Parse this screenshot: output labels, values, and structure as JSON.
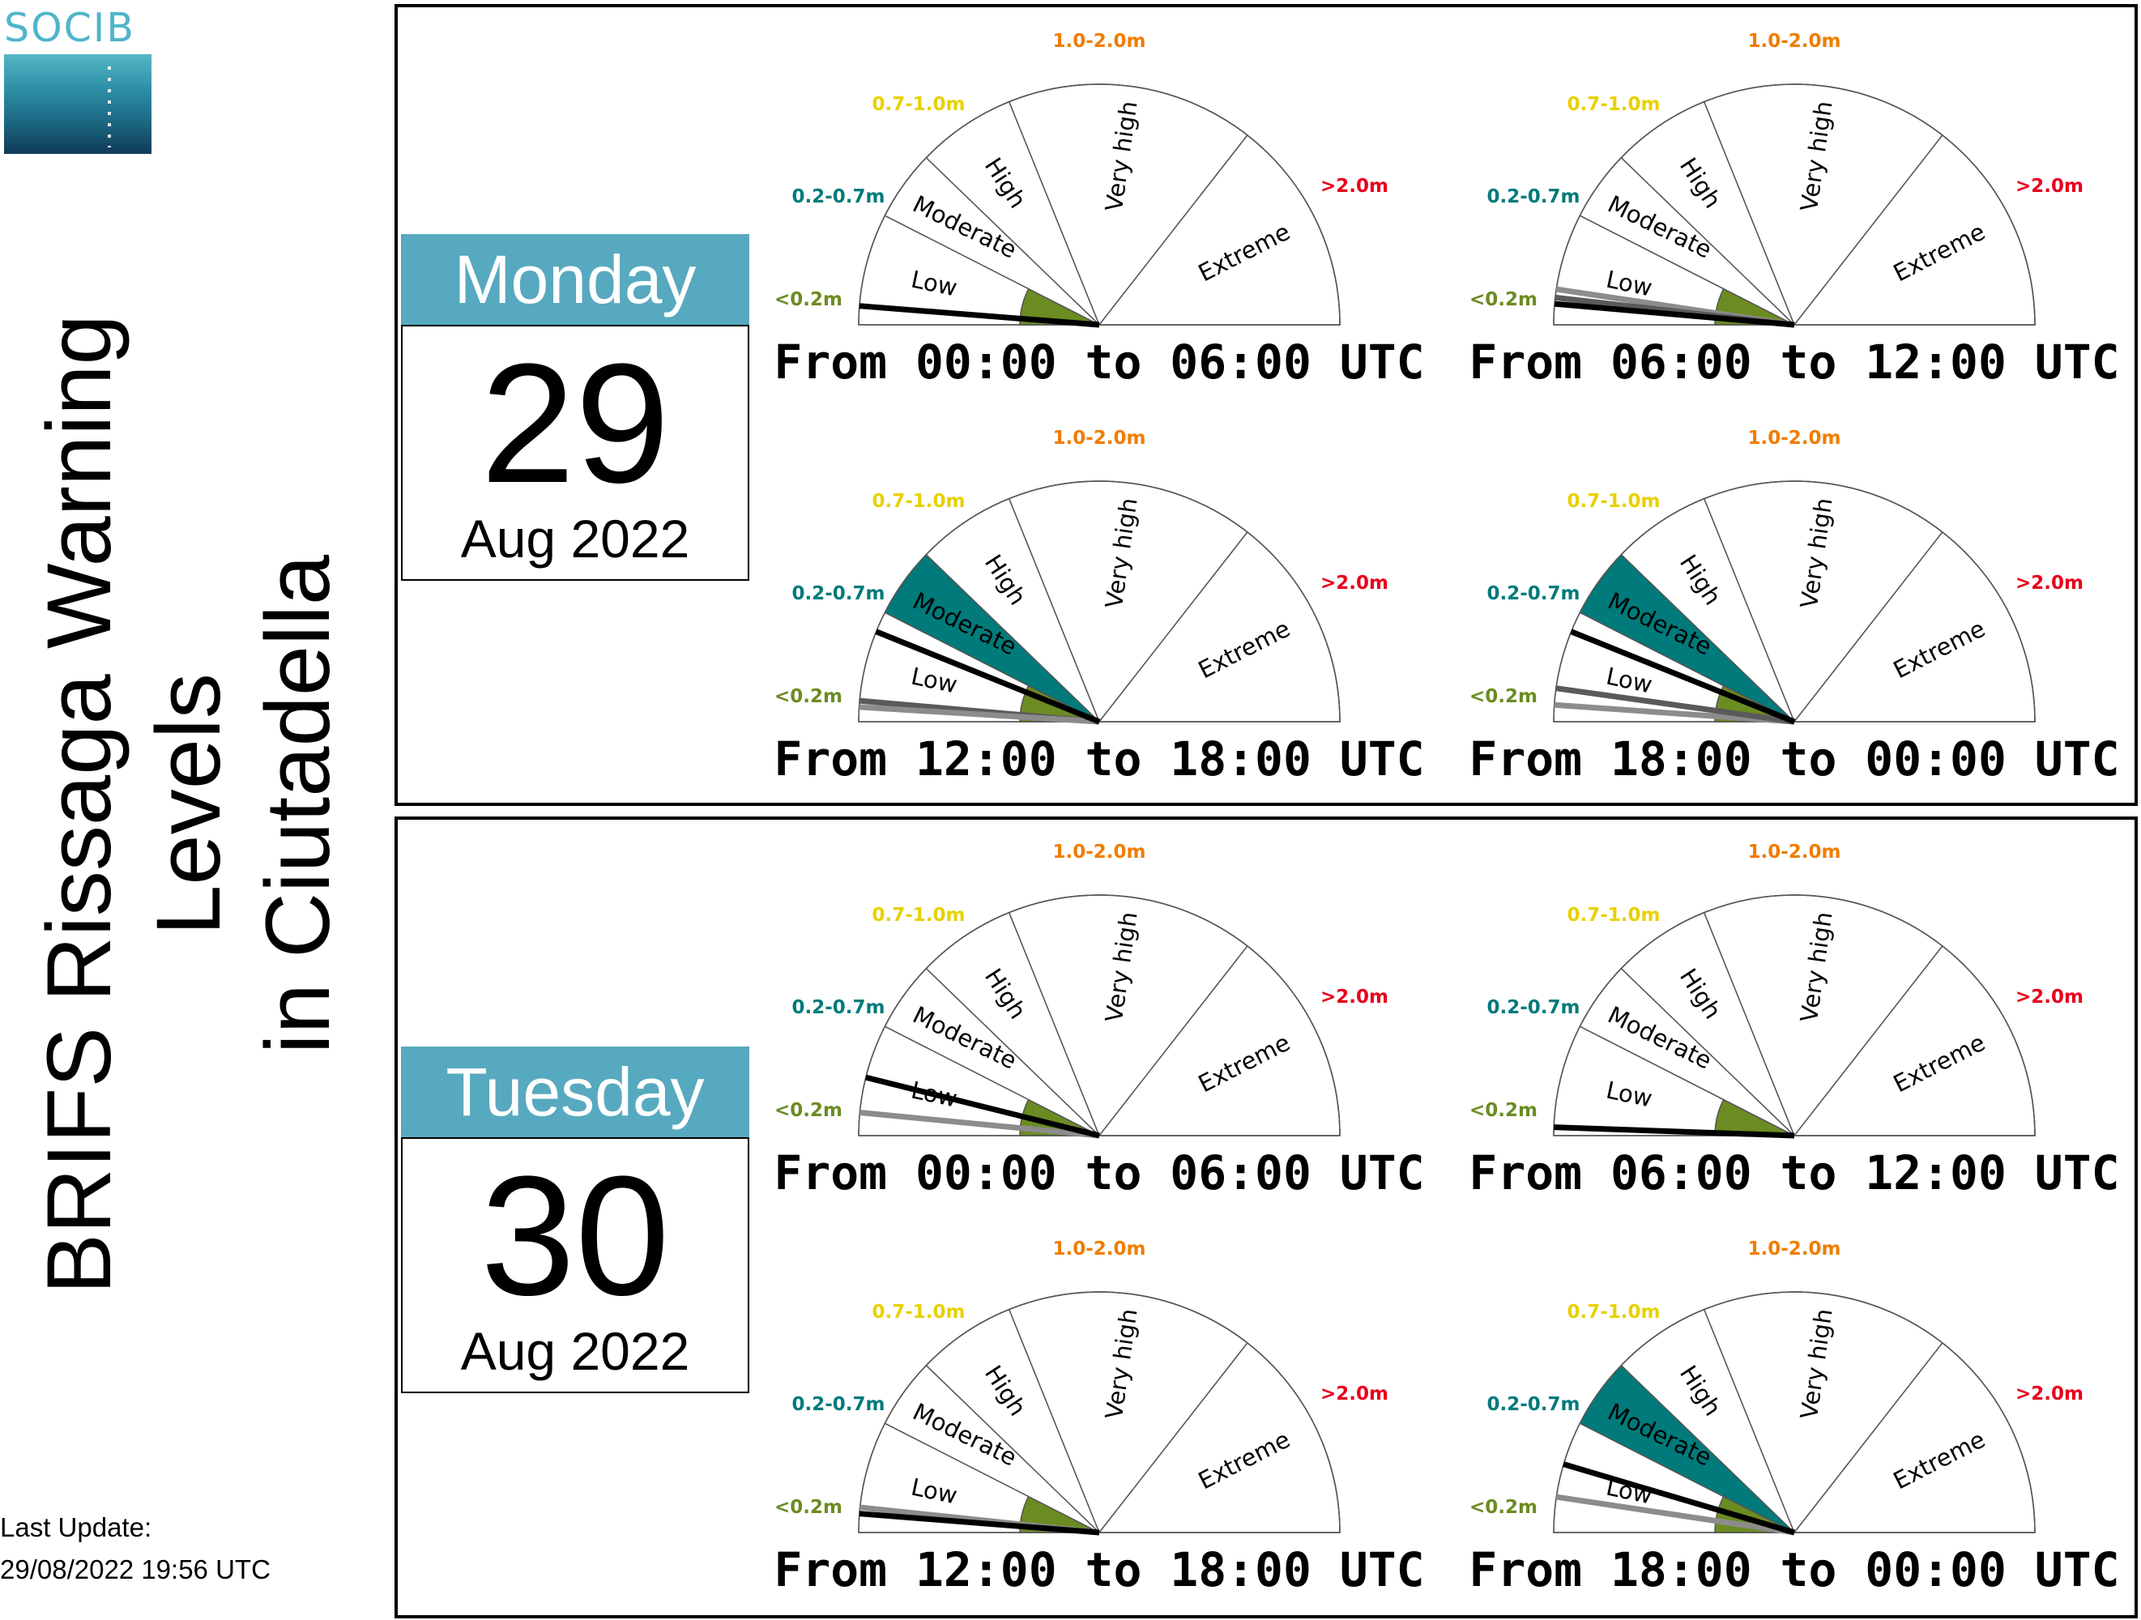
{
  "logo": {
    "text": "SOCIB"
  },
  "title": {
    "line1": "BRIFS Rissaga Warning Levels",
    "line2": "in Ciutadella"
  },
  "last_update": {
    "label": "Last Update:",
    "value": "29/08/2022 19:56 UTC"
  },
  "colors": {
    "low": "#6b8c22",
    "moderate": "#007a7a",
    "empty": "#ffffff",
    "label_low": "#6b8c22",
    "label_moderate": "#007a7a",
    "label_high": "#e8d100",
    "label_very_high": "#f07d00",
    "label_extreme": "#e8001c",
    "needle_main": "#000000",
    "needle_secondary": "#5a5a5a",
    "needle_tertiary": "#8c8c8c",
    "date_header": "#57a9bf"
  },
  "days": [
    {
      "weekday": "Monday",
      "day": "29",
      "month_year": "Aug 2022"
    },
    {
      "weekday": "Tuesday",
      "day": "30",
      "month_year": "Aug 2022"
    }
  ],
  "chart_data": {
    "type": "gauge",
    "sectors": [
      "Low",
      "Moderate",
      "High",
      "Very high",
      "Extreme"
    ],
    "ranges": [
      "<0.2m",
      "0.2-0.7m",
      "0.7-1.0m",
      "1.0-2.0m",
      ">2.0m"
    ],
    "panels": [
      {
        "day": 0,
        "period": "From 00:00 to 06:00 UTC",
        "fill_level": "Low",
        "needles": [
          {
            "style": "main",
            "angle_deg": 4.5
          }
        ]
      },
      {
        "day": 0,
        "period": "From 06:00 to 12:00 UTC",
        "fill_level": "Low",
        "needles": [
          {
            "style": "tertiary",
            "angle_deg": 8.5
          },
          {
            "style": "secondary",
            "angle_deg": 6.5
          },
          {
            "style": "main",
            "angle_deg": 5
          }
        ]
      },
      {
        "day": 0,
        "period": "From 12:00 to 18:00 UTC",
        "fill_level": "Moderate",
        "needles": [
          {
            "style": "secondary",
            "angle_deg": 5
          },
          {
            "style": "tertiary",
            "angle_deg": 3.5
          },
          {
            "style": "main",
            "angle_deg": 22
          }
        ]
      },
      {
        "day": 0,
        "period": "From 18:00 to 00:00 UTC",
        "fill_level": "Moderate",
        "needles": [
          {
            "style": "tertiary",
            "angle_deg": 4
          },
          {
            "style": "secondary",
            "angle_deg": 8
          },
          {
            "style": "main",
            "angle_deg": 22
          }
        ]
      },
      {
        "day": 1,
        "period": "From 00:00 to 06:00 UTC",
        "fill_level": "Low",
        "needles": [
          {
            "style": "tertiary",
            "angle_deg": 5.5
          },
          {
            "style": "main",
            "angle_deg": 14
          }
        ]
      },
      {
        "day": 1,
        "period": "From 06:00 to 12:00 UTC",
        "fill_level": "Low",
        "needles": [
          {
            "style": "main",
            "angle_deg": 2
          }
        ]
      },
      {
        "day": 1,
        "period": "From 12:00 to 18:00 UTC",
        "fill_level": "Low",
        "needles": [
          {
            "style": "tertiary",
            "angle_deg": 6
          },
          {
            "style": "main",
            "angle_deg": 4.5
          }
        ]
      },
      {
        "day": 1,
        "period": "From 18:00 to 00:00 UTC",
        "fill_level": "Moderate",
        "needles": [
          {
            "style": "tertiary",
            "angle_deg": 8.5
          },
          {
            "style": "main",
            "angle_deg": 16.5
          }
        ]
      }
    ]
  }
}
